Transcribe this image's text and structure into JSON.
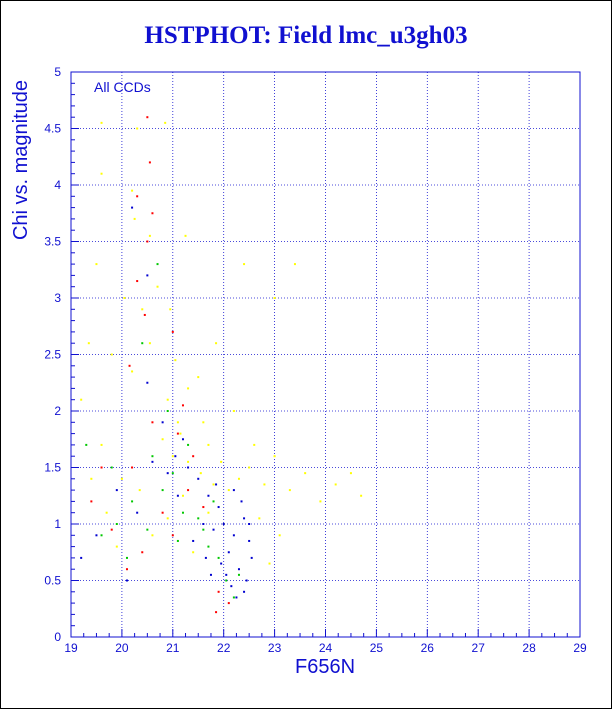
{
  "chart_data": {
    "type": "scatter",
    "title": "HSTPHOT: Field lmc_u3gh03",
    "xlabel": "F656N",
    "ylabel": "Chi vs. magnitude",
    "annotation": "All CCDs",
    "xlim": [
      19,
      29
    ],
    "ylim": [
      0,
      5
    ],
    "x_ticks": [
      "19",
      "20",
      "21",
      "22",
      "23",
      "24",
      "25",
      "26",
      "27",
      "28",
      "29"
    ],
    "y_ticks": [
      "0",
      "0.5",
      "1",
      "1.5",
      "2",
      "2.5",
      "3",
      "3.5",
      "4",
      "4.5",
      "5"
    ],
    "grid": true,
    "series": [
      {
        "color": "#ffff00",
        "points": [
          [
            19.6,
            4.55
          ],
          [
            20.3,
            4.5
          ],
          [
            20.85,
            4.55
          ],
          [
            19.6,
            4.1
          ],
          [
            20.2,
            3.95
          ],
          [
            20.25,
            3.7
          ],
          [
            20.55,
            3.55
          ],
          [
            19.5,
            3.3
          ],
          [
            20.05,
            3.0
          ],
          [
            20.4,
            2.9
          ],
          [
            20.7,
            3.1
          ],
          [
            19.35,
            2.6
          ],
          [
            19.2,
            2.1
          ],
          [
            19.8,
            2.5
          ],
          [
            20.2,
            2.35
          ],
          [
            20.55,
            2.6
          ],
          [
            21.05,
            2.45
          ],
          [
            21.3,
            2.2
          ],
          [
            21.6,
            1.9
          ],
          [
            21.15,
            1.8
          ],
          [
            20.8,
            1.75
          ],
          [
            21.0,
            1.6
          ],
          [
            21.3,
            1.55
          ],
          [
            21.55,
            1.45
          ],
          [
            21.8,
            1.35
          ],
          [
            22.1,
            1.3
          ],
          [
            21.95,
            1.55
          ],
          [
            22.3,
            1.4
          ],
          [
            22.5,
            1.5
          ],
          [
            22.8,
            1.35
          ],
          [
            23.0,
            1.6
          ],
          [
            23.3,
            1.3
          ],
          [
            23.6,
            1.45
          ],
          [
            23.9,
            1.2
          ],
          [
            24.2,
            1.35
          ],
          [
            24.5,
            1.45
          ],
          [
            24.7,
            1.25
          ],
          [
            22.7,
            1.05
          ],
          [
            23.1,
            0.9
          ],
          [
            22.9,
            0.65
          ],
          [
            20.9,
            2.1
          ],
          [
            21.5,
            2.3
          ],
          [
            22.2,
            2.0
          ],
          [
            23.0,
            3.0
          ],
          [
            23.4,
            3.3
          ],
          [
            22.4,
            3.3
          ],
          [
            20.35,
            1.3
          ],
          [
            19.7,
            1.1
          ],
          [
            20.0,
            1.4
          ],
          [
            21.2,
            1.25
          ],
          [
            21.7,
            1.1
          ],
          [
            22.0,
            1.0
          ],
          [
            19.9,
            0.8
          ],
          [
            20.6,
            0.9
          ],
          [
            21.4,
            0.75
          ],
          [
            20.9,
            1.05
          ],
          [
            21.1,
            1.9
          ],
          [
            21.7,
            1.7
          ],
          [
            19.6,
            1.7
          ],
          [
            19.4,
            1.4
          ],
          [
            22.6,
            1.7
          ],
          [
            21.25,
            3.55
          ],
          [
            20.95,
            2.9
          ],
          [
            21.85,
            2.6
          ]
        ]
      },
      {
        "color": "#00c800",
        "points": [
          [
            19.3,
            1.7
          ],
          [
            19.8,
            1.5
          ],
          [
            20.2,
            1.2
          ],
          [
            20.5,
            0.95
          ],
          [
            20.8,
            1.3
          ],
          [
            21.0,
            1.45
          ],
          [
            21.2,
            1.1
          ],
          [
            21.5,
            1.05
          ],
          [
            21.7,
            0.8
          ],
          [
            21.9,
            0.7
          ],
          [
            22.05,
            0.5
          ],
          [
            22.2,
            0.35
          ],
          [
            20.4,
            2.6
          ],
          [
            20.9,
            2.0
          ],
          [
            21.3,
            1.7
          ],
          [
            19.6,
            0.9
          ],
          [
            20.1,
            0.7
          ],
          [
            20.6,
            1.6
          ],
          [
            22.3,
            0.55
          ],
          [
            21.6,
            0.95
          ],
          [
            21.8,
            1.2
          ],
          [
            20.7,
            3.3
          ],
          [
            21.1,
            0.85
          ],
          [
            19.9,
            1.0
          ]
        ]
      },
      {
        "color": "#ff0000",
        "points": [
          [
            20.5,
            4.6
          ],
          [
            20.55,
            4.2
          ],
          [
            20.3,
            3.9
          ],
          [
            20.6,
            3.75
          ],
          [
            20.5,
            3.5
          ],
          [
            20.3,
            3.15
          ],
          [
            20.45,
            2.85
          ],
          [
            21.0,
            2.7
          ],
          [
            20.15,
            2.4
          ],
          [
            20.6,
            1.9
          ],
          [
            21.1,
            1.8
          ],
          [
            21.4,
            1.6
          ],
          [
            19.4,
            1.2
          ],
          [
            19.8,
            0.95
          ],
          [
            20.1,
            0.6
          ],
          [
            20.4,
            0.75
          ],
          [
            20.8,
            1.1
          ],
          [
            21.0,
            0.9
          ],
          [
            21.3,
            1.3
          ],
          [
            21.6,
            1.15
          ],
          [
            21.9,
            0.4
          ],
          [
            21.85,
            0.22
          ],
          [
            20.2,
            1.5
          ],
          [
            19.6,
            1.5
          ],
          [
            22.1,
            0.3
          ],
          [
            21.2,
            2.05
          ]
        ]
      },
      {
        "color": "#0000d0",
        "points": [
          [
            22.0,
            1.0
          ],
          [
            22.2,
            0.9
          ],
          [
            22.4,
            1.05
          ],
          [
            22.1,
            0.75
          ],
          [
            22.3,
            0.6
          ],
          [
            22.5,
            0.85
          ],
          [
            21.9,
            1.15
          ],
          [
            21.8,
            0.95
          ],
          [
            22.35,
            1.2
          ],
          [
            22.15,
            0.45
          ],
          [
            22.45,
            0.5
          ],
          [
            21.7,
            1.25
          ],
          [
            21.5,
            1.4
          ],
          [
            21.95,
            0.65
          ],
          [
            22.25,
            0.35
          ],
          [
            21.6,
            1.0
          ],
          [
            22.55,
            0.7
          ],
          [
            21.85,
            1.35
          ],
          [
            21.3,
            1.5
          ],
          [
            21.1,
            1.25
          ],
          [
            20.9,
            1.45
          ],
          [
            20.6,
            1.55
          ],
          [
            20.3,
            1.1
          ],
          [
            19.9,
            1.3
          ],
          [
            19.5,
            0.9
          ],
          [
            19.2,
            0.7
          ],
          [
            20.1,
            0.5
          ],
          [
            21.4,
            0.85
          ],
          [
            22.05,
            0.55
          ],
          [
            22.4,
            0.4
          ],
          [
            21.2,
            1.75
          ],
          [
            20.8,
            1.9
          ],
          [
            20.5,
            2.25
          ],
          [
            20.5,
            3.2
          ],
          [
            20.2,
            3.8
          ],
          [
            22.2,
            1.3
          ],
          [
            21.75,
            0.55
          ],
          [
            22.5,
            1.0
          ],
          [
            21.65,
            0.7
          ],
          [
            21.05,
            1.6
          ]
        ]
      }
    ]
  }
}
